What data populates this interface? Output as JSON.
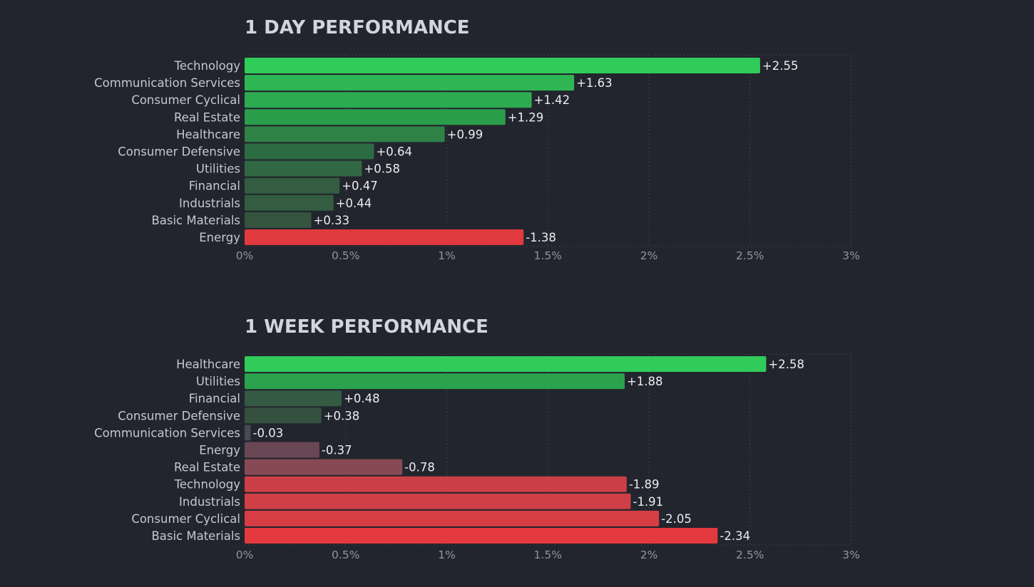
{
  "chart_data": [
    {
      "type": "bar",
      "orientation": "horizontal",
      "title": "1 DAY PERFORMANCE",
      "categories": [
        "Technology",
        "Communication Services",
        "Consumer Cyclical",
        "Real Estate",
        "Healthcare",
        "Consumer Defensive",
        "Utilities",
        "Financial",
        "Industrials",
        "Basic Materials",
        "Energy"
      ],
      "values": [
        2.55,
        1.63,
        1.42,
        1.29,
        0.99,
        0.64,
        0.58,
        0.47,
        0.44,
        0.33,
        -1.38
      ],
      "value_labels": [
        "+2.55",
        "+1.63",
        "+1.42",
        "+1.29",
        "+0.99",
        "+0.64",
        "+0.58",
        "+0.47",
        "+0.44",
        "+0.33",
        "-1.38"
      ],
      "bar_colors": [
        "#30cc5a",
        "#2eb654",
        "#2cab51",
        "#2b9e4c",
        "#2f8146",
        "#2d6b42",
        "#306843",
        "#335c40",
        "#335c40",
        "#35543e",
        "#e0393e"
      ],
      "scale": "absolute value",
      "xlim": [
        0,
        3
      ],
      "xticks": [
        "0%",
        "0.5%",
        "1%",
        "1.5%",
        "2%",
        "2.5%",
        "3%"
      ],
      "grid": true
    },
    {
      "type": "bar",
      "orientation": "horizontal",
      "title": "1 WEEK PERFORMANCE",
      "categories": [
        "Healthcare",
        "Utilities",
        "Financial",
        "Consumer Defensive",
        "Communication Services",
        "Energy",
        "Real Estate",
        "Technology",
        "Industrials",
        "Consumer Cyclical",
        "Basic Materials"
      ],
      "values": [
        2.58,
        1.88,
        0.48,
        0.38,
        -0.03,
        -0.37,
        -0.78,
        -1.89,
        -1.91,
        -2.05,
        -2.34
      ],
      "value_labels": [
        "+2.58",
        "+1.88",
        "+0.48",
        "+0.38",
        "-0.03",
        "-0.37",
        "-0.78",
        "-1.89",
        "-1.91",
        "-2.05",
        "-2.34"
      ],
      "bar_colors": [
        "#30cc5a",
        "#2ba24e",
        "#345a44",
        "#35503f",
        "#454a56",
        "#6a4754",
        "#874a55",
        "#cc3f46",
        "#cf3f46",
        "#d73d45",
        "#e4393e"
      ],
      "scale": "absolute value",
      "xlim": [
        0,
        3
      ],
      "xticks": [
        "0%",
        "0.5%",
        "1%",
        "1.5%",
        "2%",
        "2.5%",
        "3%"
      ],
      "grid": true
    }
  ]
}
